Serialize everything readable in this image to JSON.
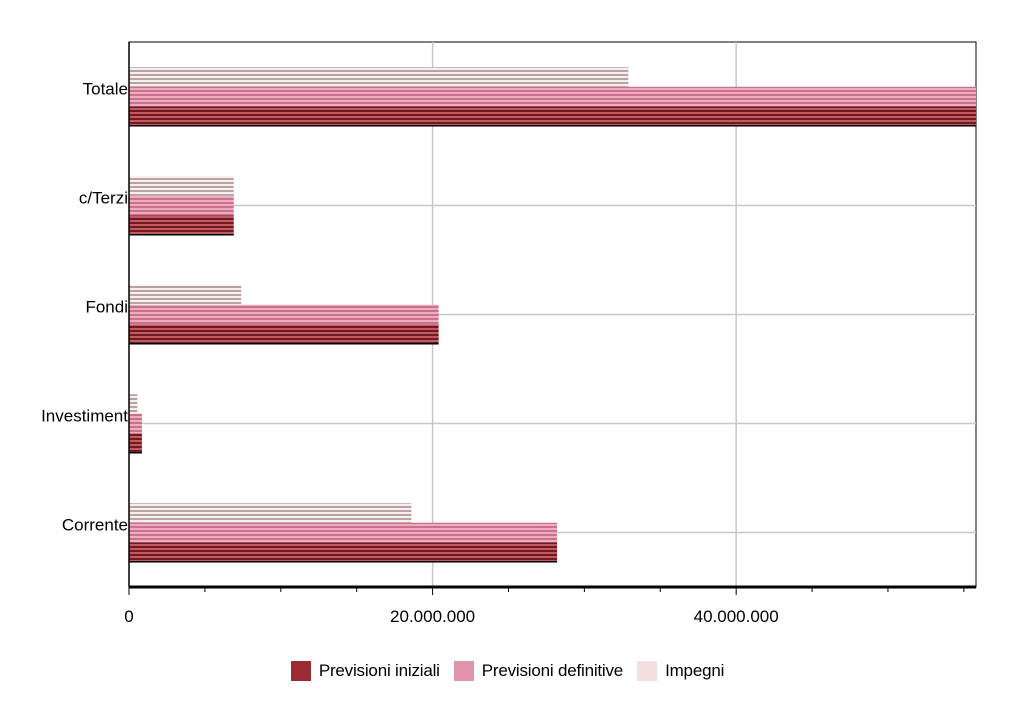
{
  "chart_data": {
    "type": "bar",
    "orientation": "horizontal",
    "categories": [
      "Corrente",
      "Investiment",
      "Fondi",
      "c/Terzi",
      "Totale"
    ],
    "series": [
      {
        "name": "Previsioni iniziali",
        "color": "#9b2a35",
        "values": [
          28200000,
          850000,
          20400000,
          6900000,
          55800000
        ]
      },
      {
        "name": "Previsioni definitive",
        "color": "#e293a7",
        "values": [
          28200000,
          850000,
          20400000,
          6900000,
          55800000
        ]
      },
      {
        "name": "Impegni",
        "color": "#f2dfe0",
        "values": [
          18600000,
          550000,
          7400000,
          6900000,
          32900000
        ]
      }
    ],
    "xlim": [
      0,
      55800000
    ],
    "xticks": [
      "0",
      "20.000.000",
      "40.000.000"
    ],
    "xtick_values": [
      0,
      20000000,
      40000000
    ],
    "grid": true,
    "legend": "bottom"
  }
}
